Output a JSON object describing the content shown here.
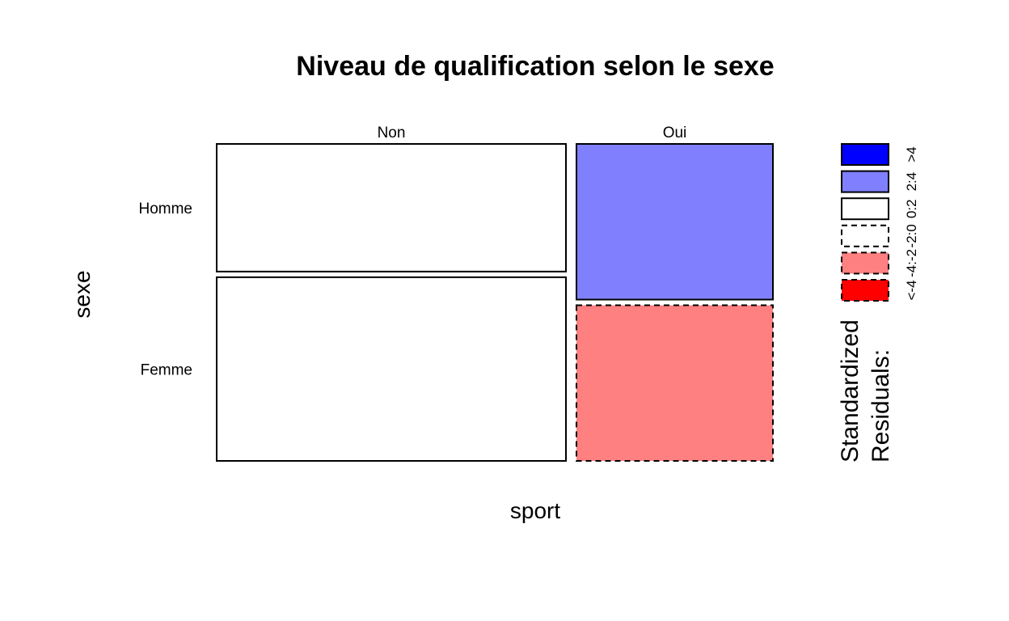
{
  "chart_data": {
    "type": "mosaic",
    "title": "Niveau de qualification selon le sexe",
    "xlabel": "sport",
    "ylabel": "sexe",
    "x_variable": "sport",
    "y_variable": "sexe",
    "x_levels": [
      "Non",
      "Oui"
    ],
    "y_levels": [
      "Homme",
      "Femme"
    ],
    "x_proportions": [
      0.64,
      0.36
    ],
    "conditional_proportions": {
      "Non": [
        0.41,
        0.59
      ],
      "Oui": [
        0.5,
        0.5
      ]
    },
    "residual_classes": {
      "Non": [
        "0:-2",
        "0:2"
      ],
      "Oui": [
        "2:4",
        "-4:-2"
      ]
    },
    "legend": {
      "title_line1": "Standardized",
      "title_line2": "Residuals:",
      "classes": [
        {
          "label": ">4",
          "fill": "#0000ff",
          "dashed": false
        },
        {
          "label": "2:4",
          "fill": "#8080ff",
          "dashed": false
        },
        {
          "label": "0:2",
          "fill": "#ffffff",
          "dashed": false
        },
        {
          "label": "-2:0",
          "fill": "#ffffff",
          "dashed": true
        },
        {
          "label": "-4:-2",
          "fill": "#ff8080",
          "dashed": true
        },
        {
          "label": "<-4",
          "fill": "#ff0000",
          "dashed": true
        }
      ]
    }
  }
}
